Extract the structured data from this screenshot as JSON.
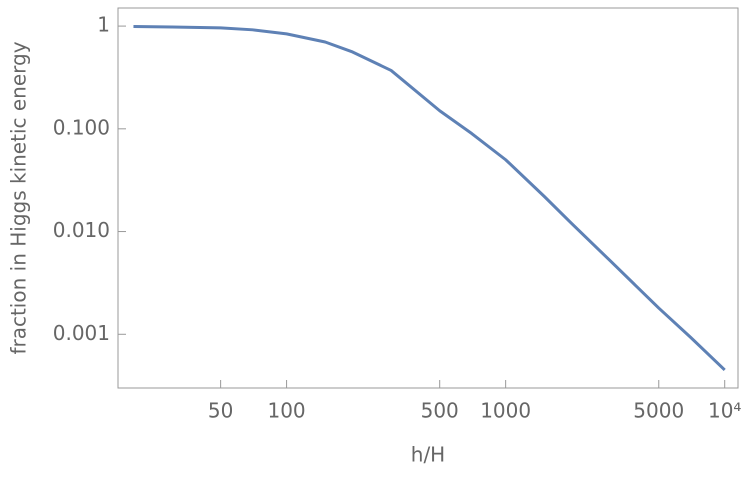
{
  "chart_data": {
    "type": "line",
    "x_label": "h/H",
    "y_label": "fraction in Higgs kinetic energy",
    "x": [
      20,
      30,
      50,
      70,
      100,
      150,
      200,
      300,
      500,
      700,
      1000,
      1500,
      2000,
      3000,
      5000,
      7000,
      10000
    ],
    "series": [
      {
        "name": "fraction",
        "color": "#5e81b5",
        "values": [
          0.99,
          0.98,
          0.96,
          0.92,
          0.84,
          0.7,
          0.56,
          0.37,
          0.15,
          0.09,
          0.05,
          0.022,
          0.012,
          0.0052,
          0.0018,
          0.00093,
          0.00045
        ]
      }
    ],
    "xlim": [
      17,
      11500
    ],
    "ylim": [
      0.0003,
      1.5
    ],
    "xscale": "log",
    "yscale": "log",
    "xticks": [
      50,
      100,
      500,
      1000,
      5000,
      {
        "value": 10000,
        "label": "10⁴"
      }
    ],
    "yticks": [
      1,
      {
        "value": 0.1,
        "label": "0.100"
      },
      {
        "value": 0.01,
        "label": "0.010"
      },
      0.001
    ]
  }
}
